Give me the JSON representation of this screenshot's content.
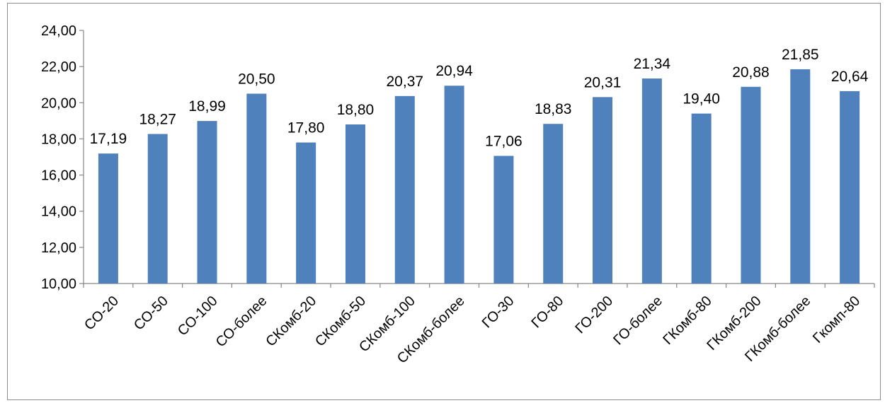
{
  "chart_data": {
    "type": "bar",
    "title": "",
    "xlabel": "",
    "ylabel": "",
    "ylim": [
      10,
      24
    ],
    "yticks": [
      10,
      12,
      14,
      16,
      18,
      20,
      22,
      24
    ],
    "ytick_labels": [
      "10,00",
      "12,00",
      "14,00",
      "16,00",
      "18,00",
      "20,00",
      "22,00",
      "24,00"
    ],
    "categories": [
      "СО-20",
      "СО-50",
      "СО-100",
      "СО-более",
      "СКомб-20",
      "СКомб-50",
      "СКомб-100",
      "СКомб-более",
      "ГО-30",
      "ГО-80",
      "ГО-200",
      "ГО-более",
      "ГКомб-80",
      "ГКомб-200",
      "ГКомб-более",
      "Гкомп-80"
    ],
    "values": [
      17.19,
      18.27,
      18.99,
      20.5,
      17.8,
      18.8,
      20.37,
      20.94,
      17.06,
      18.83,
      20.31,
      21.34,
      19.4,
      20.88,
      21.85,
      20.64
    ],
    "data_labels": [
      "17,19",
      "18,27",
      "18,99",
      "20,50",
      "17,80",
      "18,80",
      "20,37",
      "20,94",
      "17,06",
      "18,83",
      "20,31",
      "21,34",
      "19,40",
      "20,88",
      "21,85",
      "20,64"
    ],
    "bar_color": "#4f81bd",
    "grid": false,
    "legend": "none"
  }
}
